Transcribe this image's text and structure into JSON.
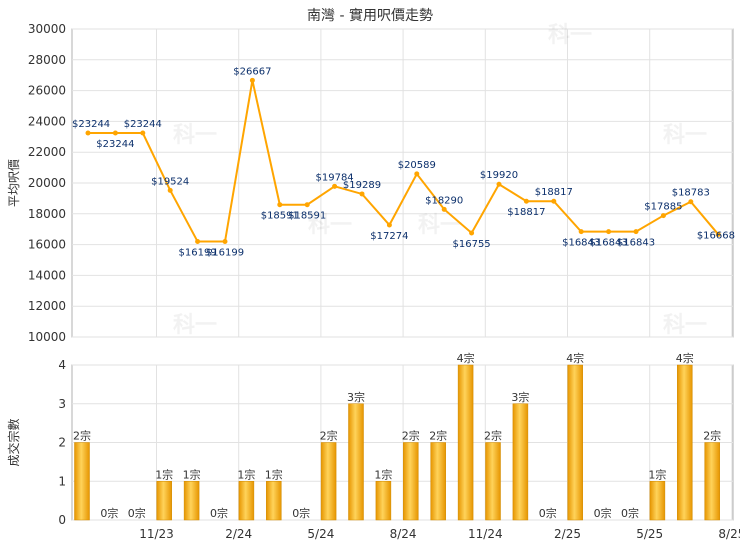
{
  "chart_data": [
    {
      "type": "line",
      "title": "南灣 - 實用呎價走勢",
      "ylabel": "平均呎價",
      "ylim": [
        10000,
        30000
      ],
      "yticks": [
        10000,
        12000,
        14000,
        16000,
        18000,
        20000,
        22000,
        24000,
        26000,
        28000,
        30000
      ],
      "grid": true,
      "color": "#ffa500",
      "series": [
        {
          "values": [
            23244,
            23244,
            23244,
            19524,
            16199,
            16199,
            26667,
            18591,
            18591,
            19784,
            19289,
            17274,
            20589,
            18290,
            16755,
            19920,
            18817,
            18817,
            16843,
            16843,
            16843,
            17885,
            18783,
            16668
          ],
          "labels": [
            "$23244",
            "$23244",
            "$23244",
            "$19524",
            "$16199",
            "$16199",
            "$26667",
            "$18591",
            "$18591",
            "$19784",
            "$19289",
            "$17274",
            "$20589",
            "$18290",
            "$16755",
            "$19920",
            "$18817",
            "$18817",
            "$16843",
            "$16843",
            "$16843",
            "$17885",
            "$18783",
            "$16668"
          ]
        }
      ]
    },
    {
      "type": "bar",
      "ylabel": "成交宗數",
      "ylim": [
        0,
        4
      ],
      "yticks": [
        0,
        1,
        2,
        3,
        4
      ],
      "grid": true,
      "color": "#f5a800",
      "values": [
        2,
        0,
        0,
        1,
        1,
        0,
        1,
        1,
        0,
        2,
        3,
        1,
        2,
        2,
        4,
        2,
        3,
        0,
        4,
        0,
        0,
        1,
        4,
        2
      ],
      "labels": [
        "2宗",
        "0宗",
        "0宗",
        "1宗",
        "1宗",
        "0宗",
        "1宗",
        "1宗",
        "0宗",
        "2宗",
        "3宗",
        "1宗",
        "2宗",
        "2宗",
        "4宗",
        "2宗",
        "3宗",
        "0宗",
        "4宗",
        "0宗",
        "0宗",
        "1宗",
        "4宗",
        "2宗"
      ],
      "x_tick_labels": [
        "11/23",
        "2/24",
        "5/24",
        "8/24",
        "11/24",
        "2/25",
        "5/25",
        "8/25"
      ]
    }
  ],
  "watermark": "科一"
}
